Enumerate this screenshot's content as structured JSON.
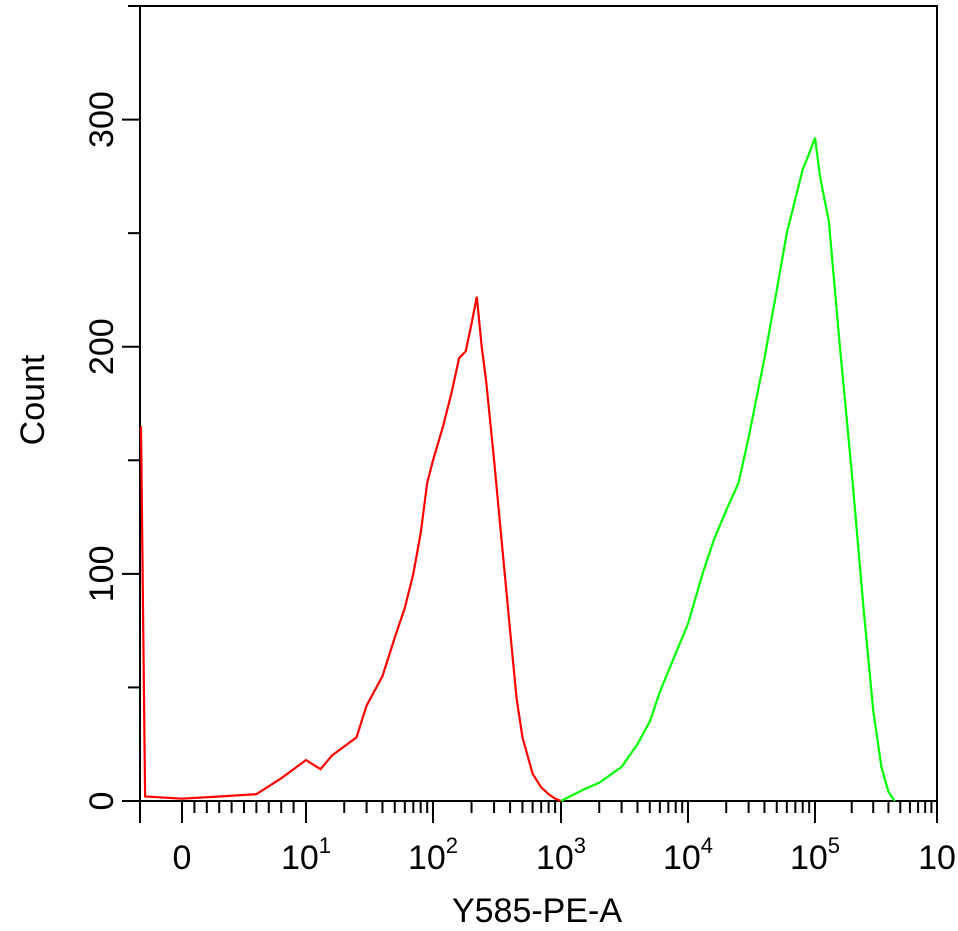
{
  "chart_data": {
    "type": "line",
    "xlabel": "Y585-PE-A",
    "ylabel": "Count",
    "x_scale": "biexponential (logicle)",
    "x_ticks": [
      {
        "base": "0",
        "exp": ""
      },
      {
        "base": "10",
        "exp": "1"
      },
      {
        "base": "10",
        "exp": "2"
      },
      {
        "base": "10",
        "exp": "3"
      },
      {
        "base": "10",
        "exp": "4"
      },
      {
        "base": "10",
        "exp": "5"
      },
      {
        "base": "10",
        "exp": ""
      }
    ],
    "y_ticks": [
      "0",
      "100",
      "200",
      "300"
    ],
    "ylim": [
      0,
      350
    ],
    "grid": false,
    "series": [
      {
        "color": "#ff0000",
        "points": [
          [
            -50,
            165
          ],
          [
            -45,
            2
          ],
          [
            0,
            1
          ],
          [
            3,
            2
          ],
          [
            6,
            3
          ],
          [
            8,
            10
          ],
          [
            10,
            18
          ],
          [
            13,
            14
          ],
          [
            16,
            20
          ],
          [
            20,
            24
          ],
          [
            25,
            28
          ],
          [
            30,
            42
          ],
          [
            40,
            55
          ],
          [
            50,
            72
          ],
          [
            60,
            85
          ],
          [
            70,
            100
          ],
          [
            80,
            118
          ],
          [
            90,
            140
          ],
          [
            100,
            150
          ],
          [
            120,
            165
          ],
          [
            140,
            180
          ],
          [
            160,
            195
          ],
          [
            180,
            198
          ],
          [
            200,
            210
          ],
          [
            220,
            222
          ],
          [
            240,
            200
          ],
          [
            260,
            185
          ],
          [
            300,
            150
          ],
          [
            350,
            110
          ],
          [
            400,
            75
          ],
          [
            450,
            45
          ],
          [
            500,
            28
          ],
          [
            600,
            12
          ],
          [
            700,
            6
          ],
          [
            800,
            3
          ],
          [
            900,
            1
          ],
          [
            1000,
            0
          ]
        ]
      },
      {
        "color": "#00ff00",
        "points": [
          [
            1000,
            0
          ],
          [
            1500,
            5
          ],
          [
            2000,
            8
          ],
          [
            3000,
            15
          ],
          [
            4000,
            25
          ],
          [
            5000,
            35
          ],
          [
            6000,
            48
          ],
          [
            8000,
            65
          ],
          [
            10000,
            78
          ],
          [
            13000,
            100
          ],
          [
            16000,
            115
          ],
          [
            20000,
            128
          ],
          [
            25000,
            140
          ],
          [
            30000,
            160
          ],
          [
            40000,
            195
          ],
          [
            50000,
            225
          ],
          [
            60000,
            250
          ],
          [
            70000,
            265
          ],
          [
            80000,
            278
          ],
          [
            90000,
            285
          ],
          [
            100000,
            292
          ],
          [
            110000,
            275
          ],
          [
            130000,
            255
          ],
          [
            160000,
            200
          ],
          [
            200000,
            145
          ],
          [
            250000,
            85
          ],
          [
            300000,
            40
          ],
          [
            350000,
            15
          ],
          [
            400000,
            4
          ],
          [
            450000,
            0
          ]
        ]
      }
    ]
  }
}
